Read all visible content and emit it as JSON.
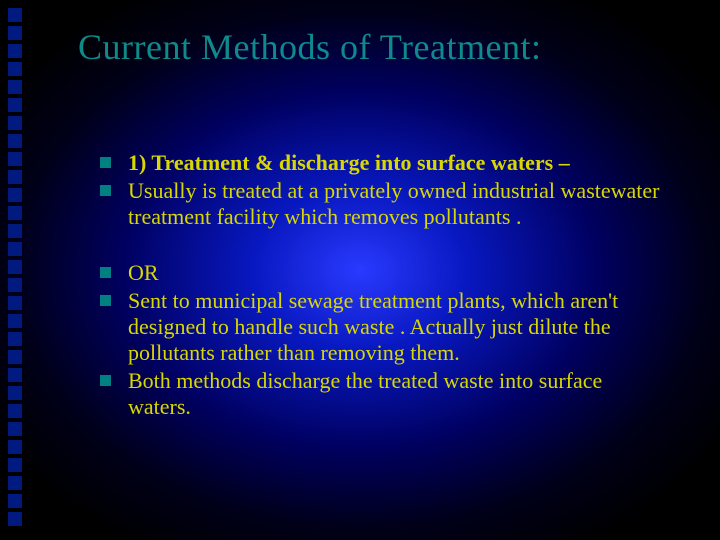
{
  "colors": {
    "title_color": "#0e8a8a",
    "body_color": "#d8d800",
    "bullet_color": "#008080",
    "deco_square_color": "#001a80"
  },
  "title": "Current Methods of Treatment:",
  "groups": [
    {
      "items": [
        {
          "text": "1)  Treatment & discharge into surface waters –",
          "bold": true
        },
        {
          "text": "Usually is treated at a privately owned industrial wastewater treatment facility which removes pollutants .",
          "bold": false
        }
      ]
    },
    {
      "items": [
        {
          "text": "OR",
          "bold": false
        },
        {
          "text": "Sent to municipal sewage treatment plants, which aren't designed to handle such waste . Actually just dilute the pollutants rather than removing them.",
          "bold": false
        },
        {
          "text": "Both methods discharge the treated waste into surface waters.",
          "bold": false
        }
      ]
    }
  ],
  "deco_square_count": 29
}
